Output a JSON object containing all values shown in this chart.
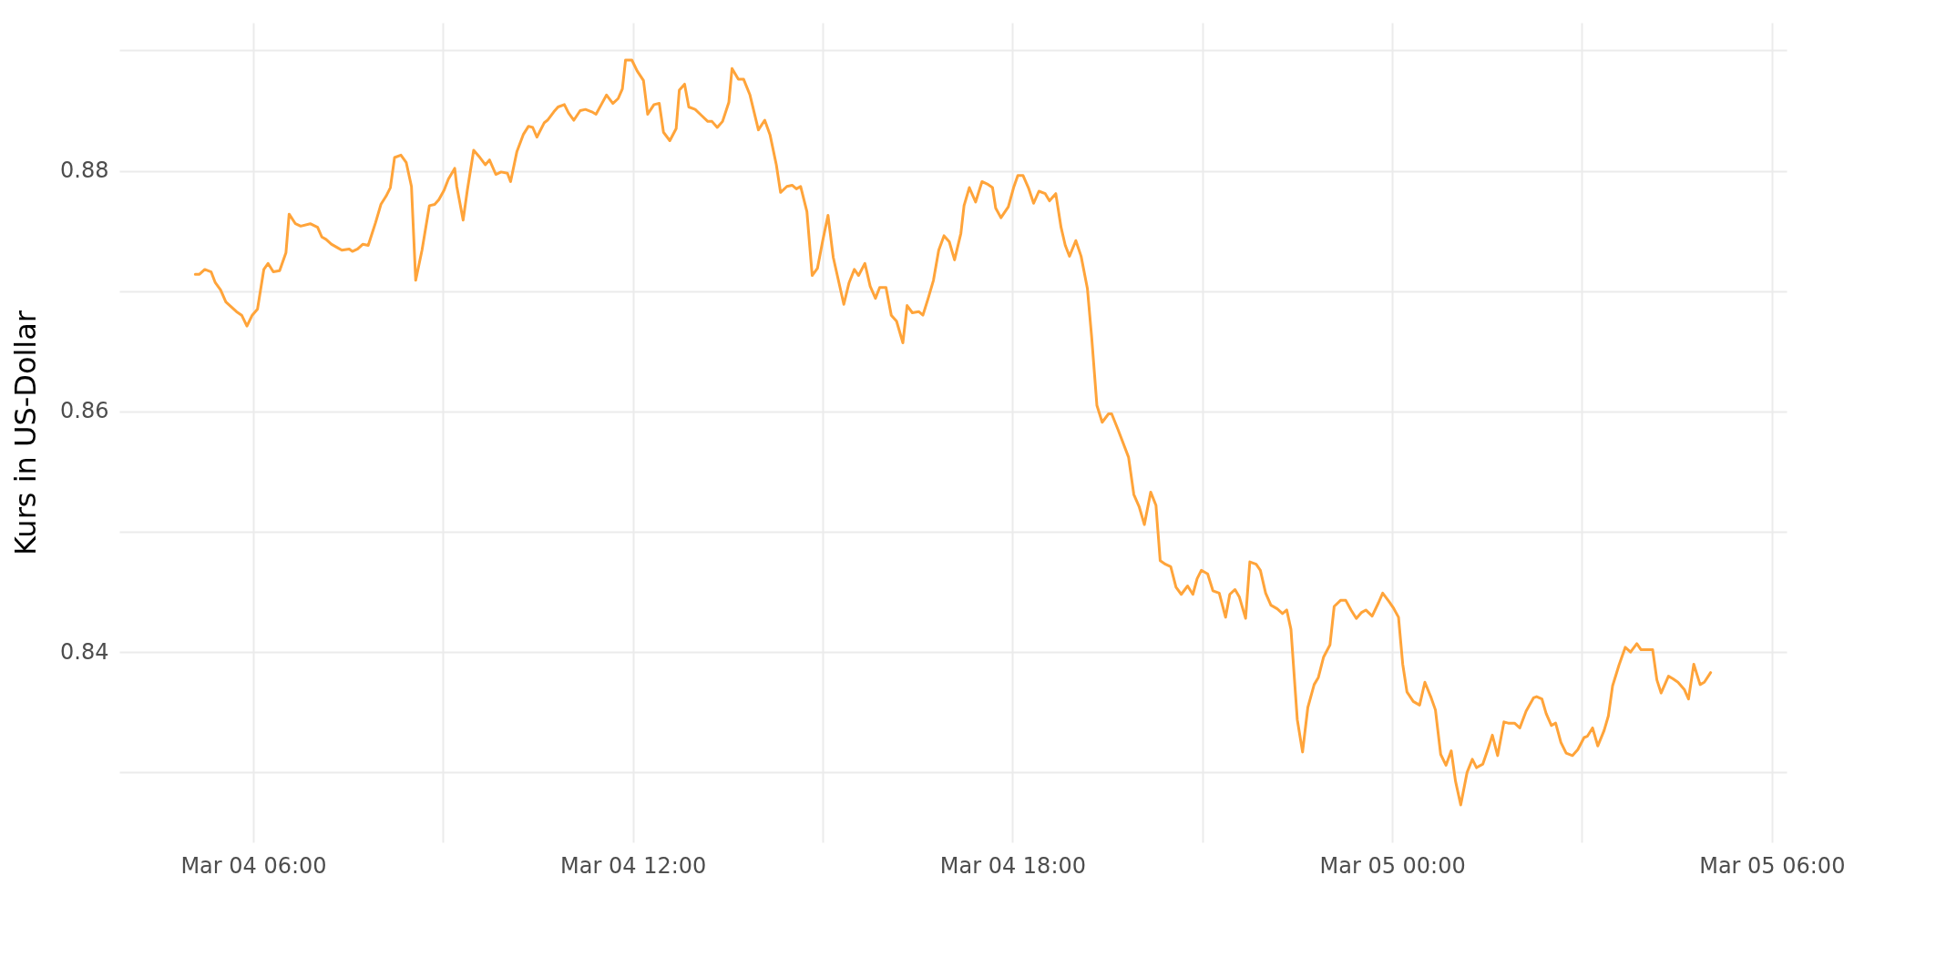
{
  "chart_data": {
    "type": "line",
    "ylabel": "Kurs in US-Dollar",
    "color": "#ffa43a",
    "grid": true,
    "xlim": [
      "--03-04T03:53",
      "--03-05T06:14"
    ],
    "ylim": [
      0.8242,
      0.8923
    ],
    "xticks": [
      {
        "value": "--03-04T06:00",
        "label": "Mar 04 06:00"
      },
      {
        "value": "--03-04T09:00",
        "label": null
      },
      {
        "value": "--03-04T12:00",
        "label": "Mar 04 12:00"
      },
      {
        "value": "--03-04T15:00",
        "label": null
      },
      {
        "value": "--03-04T18:00",
        "label": "Mar 04 18:00"
      },
      {
        "value": "--03-04T21:00",
        "label": null
      },
      {
        "value": "--03-05T00:00",
        "label": "Mar 05 00:00"
      },
      {
        "value": "--03-05T03:00",
        "label": null
      },
      {
        "value": "--03-05T06:00",
        "label": "Mar 05 06:00"
      }
    ],
    "yticks": [
      {
        "value": 0.83,
        "label": null
      },
      0.84,
      {
        "value": 0.85,
        "label": null
      },
      0.86,
      {
        "value": 0.87,
        "label": null
      },
      0.88,
      {
        "value": 0.89,
        "label": null
      }
    ],
    "x": [
      "--03-04T05:05",
      "--03-04T05:09",
      "--03-04T05:14",
      "--03-04T05:20",
      "--03-04T05:24",
      "--03-04T05:29",
      "--03-04T05:34",
      "--03-04T05:39",
      "--03-04T05:44",
      "--03-04T05:49",
      "--03-04T05:54",
      "--03-04T05:59",
      "--03-04T06:04",
      "--03-04T06:10",
      "--03-04T06:14",
      "--03-04T06:19",
      "--03-04T06:25",
      "--03-04T06:31",
      "--03-04T06:34",
      "--03-04T06:40",
      "--03-04T06:45",
      "--03-04T06:54",
      "--03-04T07:01",
      "--03-04T07:05",
      "--03-04T07:09",
      "--03-04T07:14",
      "--03-04T07:20",
      "--03-04T07:24",
      "--03-04T07:31",
      "--03-04T07:34",
      "--03-04T07:39",
      "--03-04T07:44",
      "--03-04T07:49",
      "--03-04T07:56",
      "--03-04T08:01",
      "--03-04T08:06",
      "--03-04T08:10",
      "--03-04T08:14",
      "--03-04T08:20",
      "--03-04T08:25",
      "--03-04T08:30",
      "--03-04T08:34",
      "--03-04T08:40",
      "--03-04T08:47",
      "--03-04T08:52",
      "--03-04T08:56",
      "--03-04T09:01",
      "--03-04T09:05",
      "--03-04T09:11",
      "--03-04T09:13",
      "--03-04T09:19",
      "--03-04T09:23",
      "--03-04T09:29",
      "--03-04T09:34",
      "--03-04T09:40",
      "--03-04T09:44",
      "--03-04T09:50",
      "--03-04T09:55",
      "--03-04T10:01",
      "--03-04T10:04",
      "--03-04T10:10",
      "--03-04T10:16",
      "--03-04T10:21",
      "--03-04T10:25",
      "--03-04T10:29",
      "--03-04T10:36",
      "--03-04T10:39",
      "--03-04T10:45",
      "--03-04T10:49",
      "--03-04T10:55",
      "--03-04T10:59",
      "--03-04T11:04",
      "--03-04T11:10",
      "--03-04T11:15",
      "--03-04T11:21",
      "--03-04T11:25",
      "--03-04T11:30",
      "--03-04T11:35",
      "--03-04T11:41",
      "--03-04T11:46",
      "--03-04T11:50",
      "--03-04T11:53",
      "--03-04T11:59",
      "--03-04T12:04",
      "--03-04T12:10",
      "--03-04T12:14",
      "--03-04T12:20",
      "--03-04T12:25",
      "--03-04T12:29",
      "--03-04T12:35",
      "--03-04T12:41",
      "--03-04T12:44",
      "--03-04T12:49",
      "--03-04T12:53",
      "--03-04T12:59",
      "--03-04T13:05",
      "--03-04T13:11",
      "--03-04T13:15",
      "--03-04T13:20",
      "--03-04T13:25",
      "--03-04T13:31",
      "--03-04T13:34",
      "--03-04T13:40",
      "--03-04T13:45",
      "--03-04T13:51",
      "--03-04T13:59",
      "--03-04T14:05",
      "--03-04T14:10",
      "--03-04T14:16",
      "--03-04T14:20",
      "--03-04T14:26",
      "--03-04T14:31",
      "--03-04T14:35",
      "--03-04T14:39",
      "--03-04T14:45",
      "--03-04T14:50",
      "--03-04T14:55",
      "--03-04T15:00",
      "--03-04T15:05",
      "--03-04T15:10",
      "--03-04T15:20",
      "--03-04T15:25",
      "--03-04T15:30",
      "--03-04T15:34",
      "--03-04T15:40",
      "--03-04T15:45",
      "--03-04T15:50",
      "--03-04T15:54",
      "--03-04T16:00",
      "--03-04T16:05",
      "--03-04T16:10",
      "--03-04T16:16",
      "--03-04T16:20",
      "--03-04T16:25",
      "--03-04T16:31",
      "--03-04T16:35",
      "--03-04T16:40",
      "--03-04T16:45",
      "--03-04T16:50",
      "--03-04T16:55",
      "--03-04T17:00",
      "--03-04T17:05",
      "--03-04T17:11",
      "--03-04T17:14",
      "--03-04T17:19",
      "--03-04T17:25",
      "--03-04T17:31",
      "--03-04T17:36",
      "--03-04T17:41",
      "--03-04T17:44",
      "--03-04T17:49",
      "--03-04T17:56",
      "--03-04T18:01",
      "--03-04T18:05",
      "--03-04T18:10",
      "--03-04T18:15",
      "--03-04T18:20",
      "--03-04T18:25",
      "--03-04T18:31",
      "--03-04T18:35",
      "--03-04T18:41",
      "--03-04T18:46",
      "--03-04T18:50",
      "--03-04T18:54",
      "--03-04T19:00",
      "--03-04T19:05",
      "--03-04T19:11",
      "--03-04T19:15",
      "--03-04T19:20",
      "--03-04T19:25",
      "--03-04T19:31",
      "--03-04T19:34",
      "--03-04T19:40",
      "--03-04T19:50",
      "--03-04T19:55",
      "--03-04T20:00",
      "--03-04T20:05",
      "--03-04T20:11",
      "--03-04T20:16",
      "--03-04T20:20",
      "--03-04T20:25",
      "--03-04T20:30",
      "--03-04T20:35",
      "--03-04T20:40",
      "--03-04T20:46",
      "--03-04T20:51",
      "--03-04T20:55",
      "--03-04T20:59",
      "--03-04T21:05",
      "--03-04T21:10",
      "--03-04T21:16",
      "--03-04T21:22",
      "--03-04T21:26",
      "--03-04T21:31",
      "--03-04T21:35",
      "--03-04T21:41",
      "--03-04T21:45",
      "--03-04T21:51",
      "--03-04T21:55",
      "--03-04T22:00",
      "--03-04T22:05",
      "--03-04T22:11",
      "--03-04T22:16",
      "--03-04T22:20",
      "--03-04T22:24",
      "--03-04T22:30",
      "--03-04T22:35",
      "--03-04T22:40",
      "--03-04T22:46",
      "--03-04T22:50",
      "--03-04T22:55",
      "--03-04T23:01",
      "--03-04T23:05",
      "--03-04T23:11",
      "--03-04T23:16",
      "--03-04T23:21",
      "--03-04T23:26",
      "--03-04T23:31",
      "--03-04T23:35",
      "--03-04T23:41",
      "--03-04T23:47",
      "--03-04T23:51",
      "--03-04T23:57",
      "--03-05T00:01",
      "--03-05T00:06",
      "--03-05T00:10",
      "--03-05T00:14",
      "--03-05T00:20",
      "--03-05T00:26",
      "--03-05T00:31",
      "--03-05T00:37",
      "--03-05T00:41",
      "--03-05T00:46",
      "--03-05T00:51",
      "--03-05T00:56",
      "--03-05T01:00",
      "--03-05T01:05",
      "--03-05T01:11",
      "--03-05T01:16",
      "--03-05T01:20",
      "--03-05T01:26",
      "--03-05T01:31",
      "--03-05T01:35",
      "--03-05T01:40",
      "--03-05T01:46",
      "--03-05T01:50",
      "--03-05T01:56",
      "--03-05T02:01",
      "--03-05T02:07",
      "--03-05T02:14",
      "--03-05T02:17",
      "--03-05T02:22",
      "--03-05T02:26",
      "--03-05T02:31",
      "--03-05T02:35",
      "--03-05T02:40",
      "--03-05T02:45",
      "--03-05T02:51",
      "--03-05T02:56",
      "--03-05T03:02",
      "--03-05T03:05",
      "--03-05T03:10",
      "--03-05T03:15",
      "--03-05T03:21",
      "--03-05T03:25",
      "--03-05T03:29",
      "--03-05T03:35",
      "--03-05T03:41",
      "--03-05T03:46",
      "--03-05T03:52",
      "--03-05T03:56",
      "--03-05T04:07",
      "--03-05T04:11",
      "--03-05T04:15",
      "--03-05T04:22",
      "--03-05T04:26",
      "--03-05T04:31",
      "--03-05T04:37",
      "--03-05T04:41",
      "--03-05T04:46",
      "--03-05T04:52",
      "--03-05T04:56",
      "--03-05T05:02"
    ],
    "values": [
      0.8714,
      0.8714,
      0.8718,
      0.8716,
      0.8707,
      0.8701,
      0.8691,
      0.8687,
      0.8683,
      0.868,
      0.8671,
      0.868,
      0.8685,
      0.8718,
      0.8723,
      0.8716,
      0.8717,
      0.8732,
      0.8764,
      0.8756,
      0.8754,
      0.8756,
      0.8753,
      0.8745,
      0.8743,
      0.8739,
      0.8736,
      0.8734,
      0.8735,
      0.8733,
      0.8735,
      0.8739,
      0.8738,
      0.8757,
      0.8772,
      0.8779,
      0.8786,
      0.8811,
      0.8813,
      0.8807,
      0.8787,
      0.8709,
      0.8734,
      0.8771,
      0.8772,
      0.8776,
      0.8784,
      0.8793,
      0.8802,
      0.8787,
      0.8759,
      0.8784,
      0.8817,
      0.8812,
      0.8805,
      0.8809,
      0.8797,
      0.8799,
      0.8798,
      0.8791,
      0.8816,
      0.883,
      0.8837,
      0.8836,
      0.8828,
      0.884,
      0.8842,
      0.8849,
      0.8853,
      0.8855,
      0.8848,
      0.8842,
      0.885,
      0.8851,
      0.8849,
      0.8847,
      0.8855,
      0.8863,
      0.8856,
      0.886,
      0.8868,
      0.8892,
      0.8892,
      0.8883,
      0.8875,
      0.8847,
      0.8855,
      0.8856,
      0.8832,
      0.8825,
      0.8835,
      0.8867,
      0.8872,
      0.8853,
      0.8851,
      0.8846,
      0.8841,
      0.8841,
      0.8836,
      0.8841,
      0.8857,
      0.8885,
      0.8876,
      0.8876,
      0.8863,
      0.8834,
      0.8842,
      0.883,
      0.8805,
      0.8782,
      0.8787,
      0.8788,
      0.8785,
      0.8787,
      0.8766,
      0.8713,
      0.8719,
      0.8742,
      0.8763,
      0.8728,
      0.8689,
      0.8707,
      0.8718,
      0.8713,
      0.8723,
      0.8704,
      0.8694,
      0.8703,
      0.8703,
      0.868,
      0.8675,
      0.8657,
      0.8688,
      0.8682,
      0.8683,
      0.868,
      0.8694,
      0.8709,
      0.8734,
      0.8746,
      0.8741,
      0.8726,
      0.8748,
      0.8771,
      0.8786,
      0.8774,
      0.8791,
      0.8789,
      0.8786,
      0.8769,
      0.8761,
      0.877,
      0.8786,
      0.8796,
      0.8796,
      0.8786,
      0.8773,
      0.8783,
      0.8781,
      0.8775,
      0.8781,
      0.8753,
      0.8738,
      0.8729,
      0.8742,
      0.8729,
      0.8702,
      0.8662,
      0.8605,
      0.8591,
      0.8598,
      0.8598,
      0.8585,
      0.8562,
      0.8531,
      0.8521,
      0.8506,
      0.8533,
      0.8522,
      0.8476,
      0.8473,
      0.8471,
      0.8454,
      0.8448,
      0.8455,
      0.8448,
      0.8461,
      0.8468,
      0.8465,
      0.8451,
      0.8449,
      0.8429,
      0.8448,
      0.8452,
      0.8446,
      0.8428,
      0.8475,
      0.8473,
      0.8468,
      0.8449,
      0.8439,
      0.8436,
      0.8432,
      0.8435,
      0.8419,
      0.8344,
      0.8317,
      0.8354,
      0.8373,
      0.8379,
      0.8396,
      0.8406,
      0.8438,
      0.8443,
      0.8443,
      0.8435,
      0.8428,
      0.8433,
      0.8435,
      0.843,
      0.8441,
      0.8449,
      0.8442,
      0.8437,
      0.8429,
      0.839,
      0.8367,
      0.8359,
      0.8356,
      0.8375,
      0.8362,
      0.8352,
      0.8315,
      0.8306,
      0.8318,
      0.8293,
      0.8273,
      0.83,
      0.8311,
      0.8304,
      0.8307,
      0.832,
      0.8331,
      0.8314,
      0.8342,
      0.8341,
      0.8341,
      0.8337,
      0.8351,
      0.8362,
      0.8363,
      0.8361,
      0.8349,
      0.8339,
      0.8341,
      0.8325,
      0.8316,
      0.8314,
      0.8319,
      0.8329,
      0.833,
      0.8337,
      0.8322,
      0.8335,
      0.8347,
      0.8372,
      0.8389,
      0.8404,
      0.84,
      0.8407,
      0.8402,
      0.8402,
      0.8377,
      0.8366,
      0.838,
      0.8378,
      0.8375,
      0.8369,
      0.8361,
      0.839,
      0.8373,
      0.8375,
      0.8383
    ]
  }
}
